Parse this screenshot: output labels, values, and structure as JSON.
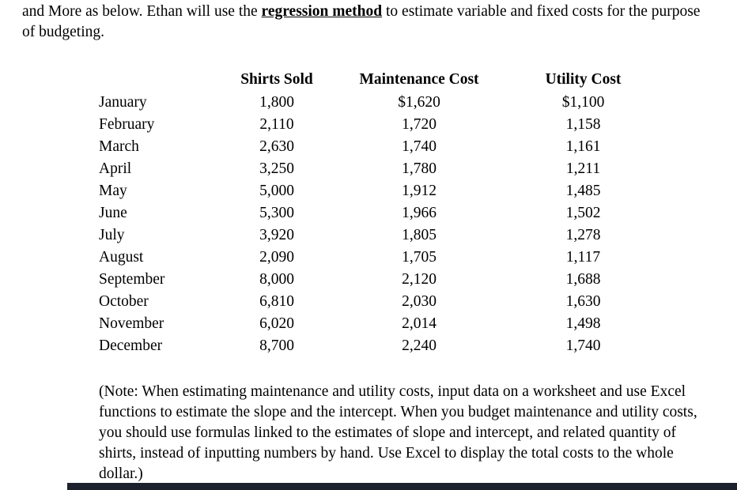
{
  "intro": {
    "pre": "and More as below. Ethan will use the ",
    "emphasis": "regression method",
    "post": " to estimate variable and fixed costs for the purpose of budgeting."
  },
  "table": {
    "headers": [
      "Shirts Sold",
      "Maintenance Cost",
      "Utility Cost"
    ],
    "rows": [
      {
        "month": "January",
        "shirts_sold": "1,800",
        "maintenance_cost": "$1,620",
        "utility_cost": "$1,100"
      },
      {
        "month": "February",
        "shirts_sold": "2,110",
        "maintenance_cost": "1,720",
        "utility_cost": "1,158"
      },
      {
        "month": "March",
        "shirts_sold": "2,630",
        "maintenance_cost": "1,740",
        "utility_cost": "1,161"
      },
      {
        "month": "April",
        "shirts_sold": "3,250",
        "maintenance_cost": "1,780",
        "utility_cost": "1,211"
      },
      {
        "month": "May",
        "shirts_sold": "5,000",
        "maintenance_cost": "1,912",
        "utility_cost": "1,485"
      },
      {
        "month": "June",
        "shirts_sold": "5,300",
        "maintenance_cost": "1,966",
        "utility_cost": "1,502"
      },
      {
        "month": "July",
        "shirts_sold": "3,920",
        "maintenance_cost": "1,805",
        "utility_cost": "1,278"
      },
      {
        "month": "August",
        "shirts_sold": "2,090",
        "maintenance_cost": "1,705",
        "utility_cost": "1,117"
      },
      {
        "month": "September",
        "shirts_sold": "8,000",
        "maintenance_cost": "2,120",
        "utility_cost": "1,688"
      },
      {
        "month": "October",
        "shirts_sold": "6,810",
        "maintenance_cost": "2,030",
        "utility_cost": "1,630"
      },
      {
        "month": "November",
        "shirts_sold": "6,020",
        "maintenance_cost": "2,014",
        "utility_cost": "1,498"
      },
      {
        "month": "December",
        "shirts_sold": "8,700",
        "maintenance_cost": "2,240",
        "utility_cost": "1,740"
      }
    ]
  },
  "note": "(Note: When estimating maintenance and utility costs, input data on a worksheet and use Excel functions to estimate the slope and the intercept. When you budget maintenance and utility costs, you should use formulas linked to the estimates of slope and intercept, and related quantity of shirts, instead of inputting numbers by hand. Use Excel to display the total costs to the whole dollar.)"
}
